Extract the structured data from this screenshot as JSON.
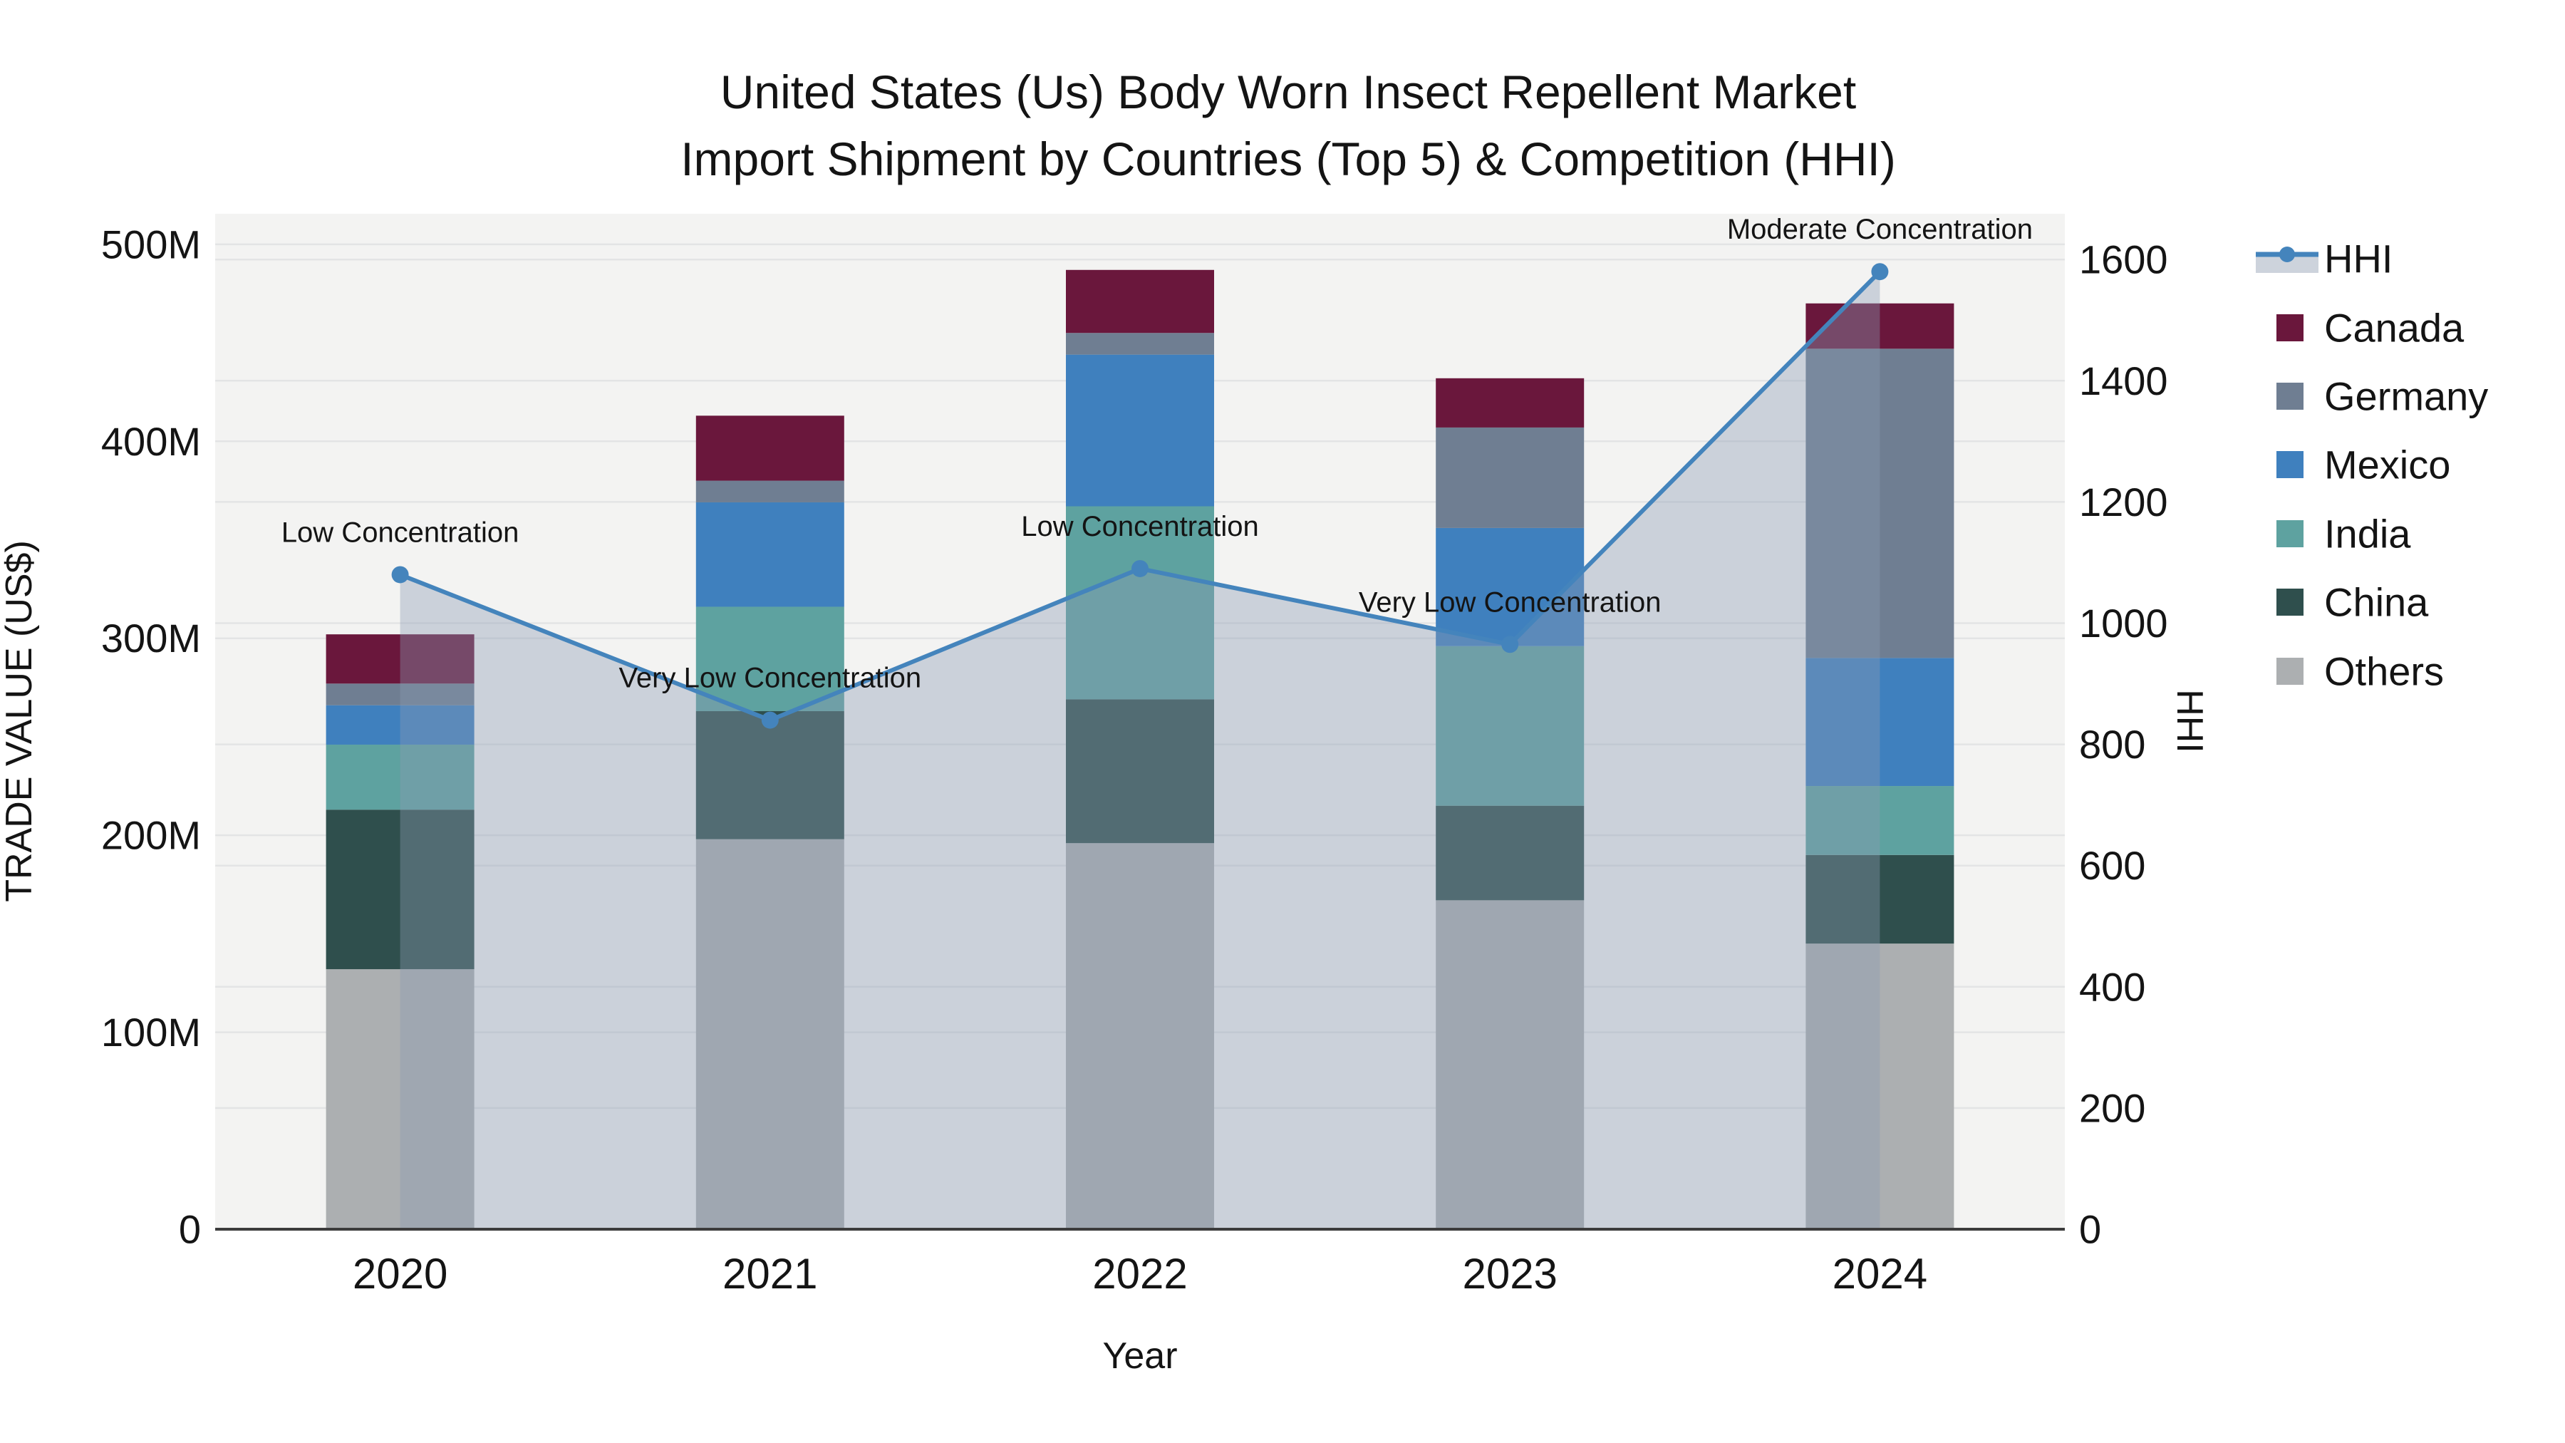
{
  "title": {
    "line1": "United States (Us) Body Worn Insect Repellent Market",
    "line2": "Import Shipment by Countries (Top 5) & Competition (HHI)"
  },
  "axes": {
    "x": {
      "title": "Year"
    },
    "y_left": {
      "title": "TRADE VALUE (US$)",
      "ticks": [
        {
          "label": "0",
          "value": 0
        },
        {
          "label": "100M",
          "value": 100
        },
        {
          "label": "200M",
          "value": 200
        },
        {
          "label": "300M",
          "value": 300
        },
        {
          "label": "400M",
          "value": 400
        },
        {
          "label": "500M",
          "value": 500
        }
      ]
    },
    "y_right": {
      "title": "HHI",
      "ticks": [
        {
          "label": "0",
          "value": 0
        },
        {
          "label": "200",
          "value": 200
        },
        {
          "label": "400",
          "value": 400
        },
        {
          "label": "600",
          "value": 600
        },
        {
          "label": "800",
          "value": 800
        },
        {
          "label": "1000",
          "value": 1000
        },
        {
          "label": "1200",
          "value": 1200
        },
        {
          "label": "1400",
          "value": 1400
        },
        {
          "label": "1600",
          "value": 1600
        }
      ]
    }
  },
  "legend": [
    {
      "label": "HHI",
      "type": "line",
      "color": "#4484BC"
    },
    {
      "label": "Canada",
      "type": "swatch",
      "color": "#6A173C"
    },
    {
      "label": "Germany",
      "type": "swatch",
      "color": "#6F7E92"
    },
    {
      "label": "Mexico",
      "type": "swatch",
      "color": "#3F80BE"
    },
    {
      "label": "India",
      "type": "swatch",
      "color": "#5EA2A0"
    },
    {
      "label": "China",
      "type": "swatch",
      "color": "#2F4F4D"
    },
    {
      "label": "Others",
      "type": "swatch",
      "color": "#ACAFB1"
    }
  ],
  "chart_data": {
    "type": "bar",
    "subtype": "stacked-bars-with-overlaid-line-and-area",
    "title": "United States (Us) Body Worn Insect Repellent Market Import Shipment by Countries (Top 5) & Competition (HHI)",
    "xlabel": "Year",
    "ylabel_left": "TRADE VALUE (US$)",
    "ylabel_right": "HHI",
    "categories": [
      "2020",
      "2021",
      "2022",
      "2023",
      "2024"
    ],
    "series_unit": "million US$",
    "series": [
      {
        "name": "Others",
        "color": "#ACAFB1",
        "values": [
          132,
          198,
          196,
          167,
          145
        ]
      },
      {
        "name": "China",
        "color": "#2F4F4D",
        "values": [
          81,
          65,
          73,
          48,
          45
        ]
      },
      {
        "name": "India",
        "color": "#5EA2A0",
        "values": [
          33,
          53,
          98,
          81,
          35
        ]
      },
      {
        "name": "Mexico",
        "color": "#3F80BE",
        "values": [
          20,
          53,
          77,
          60,
          65
        ]
      },
      {
        "name": "Germany",
        "color": "#6F7E92",
        "values": [
          11,
          11,
          11,
          51,
          157
        ]
      },
      {
        "name": "Canada",
        "color": "#6A173C",
        "values": [
          25,
          33,
          32,
          25,
          23
        ]
      }
    ],
    "line_series": {
      "name": "HHI",
      "axis": "right",
      "color": "#4484BC",
      "area_fill": "rgba(140,155,180,0.38)",
      "values": [
        1080,
        840,
        1090,
        965,
        1580
      ]
    },
    "annotations": [
      "Low Concentration",
      "Very Low Concentration",
      "Low Concentration",
      "Very Low Concentration",
      "Moderate Concentration"
    ],
    "ylim_left": [
      0,
      515.5
    ],
    "ylim_right": [
      0,
      1675.5
    ],
    "grid": true,
    "legend_position": "right",
    "plot_bg": "#F3F3F2",
    "grid_color": "#E3E4E5",
    "axisline_color": "#3C3C3C"
  }
}
